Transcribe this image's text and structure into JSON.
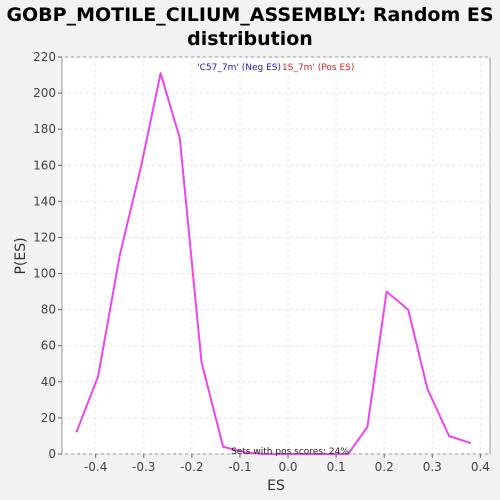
{
  "chart_data": {
    "type": "line",
    "title": "GOBP_MOTILE_CILIUM_ASSEMBLY: Random ES distribution",
    "title_lines": [
      "GOBP_MOTILE_CILIUM_ASSEMBLY: Random ES",
      "distribution"
    ],
    "xlabel": "ES",
    "ylabel": "P(ES)",
    "xlim": [
      -0.47,
      0.42
    ],
    "ylim": [
      0,
      220
    ],
    "x_ticks": [
      -0.4,
      -0.3,
      -0.2,
      -0.1,
      0.0,
      0.1,
      0.2,
      0.3,
      0.4
    ],
    "x_tick_labels": [
      "-0.4",
      "-0.3",
      "-0.2",
      "-0.1",
      "0.0",
      "0.1",
      "0.2",
      "0.3",
      "0.4"
    ],
    "y_ticks": [
      0,
      20,
      40,
      60,
      80,
      100,
      120,
      140,
      160,
      180,
      200,
      220
    ],
    "y_tick_labels": [
      "0",
      "20",
      "40",
      "60",
      "80",
      "100",
      "120",
      "140",
      "160",
      "180",
      "200",
      "220"
    ],
    "grid": true,
    "legend": [
      {
        "text": "'C57_7m' (Neg ES)",
        "color": "#1a1acc"
      },
      {
        "text": "1S_7m' (Pos ES)",
        "color": "#dd2222"
      }
    ],
    "series": [
      {
        "color": "#ee44ee",
        "x": [
          -0.44,
          -0.395,
          -0.35,
          -0.305,
          -0.265,
          -0.225,
          -0.18,
          -0.135,
          -0.09,
          -0.05,
          0.0,
          0.04,
          0.08,
          0.125,
          0.165,
          0.205,
          0.25,
          0.29,
          0.335,
          0.38
        ],
        "y": [
          12,
          43,
          110,
          160,
          211,
          175,
          51,
          4,
          1,
          0,
          0,
          0,
          0,
          0,
          15,
          90,
          80,
          36,
          10,
          6
        ]
      }
    ],
    "annotation": "Sets with pos scores: 24%"
  }
}
